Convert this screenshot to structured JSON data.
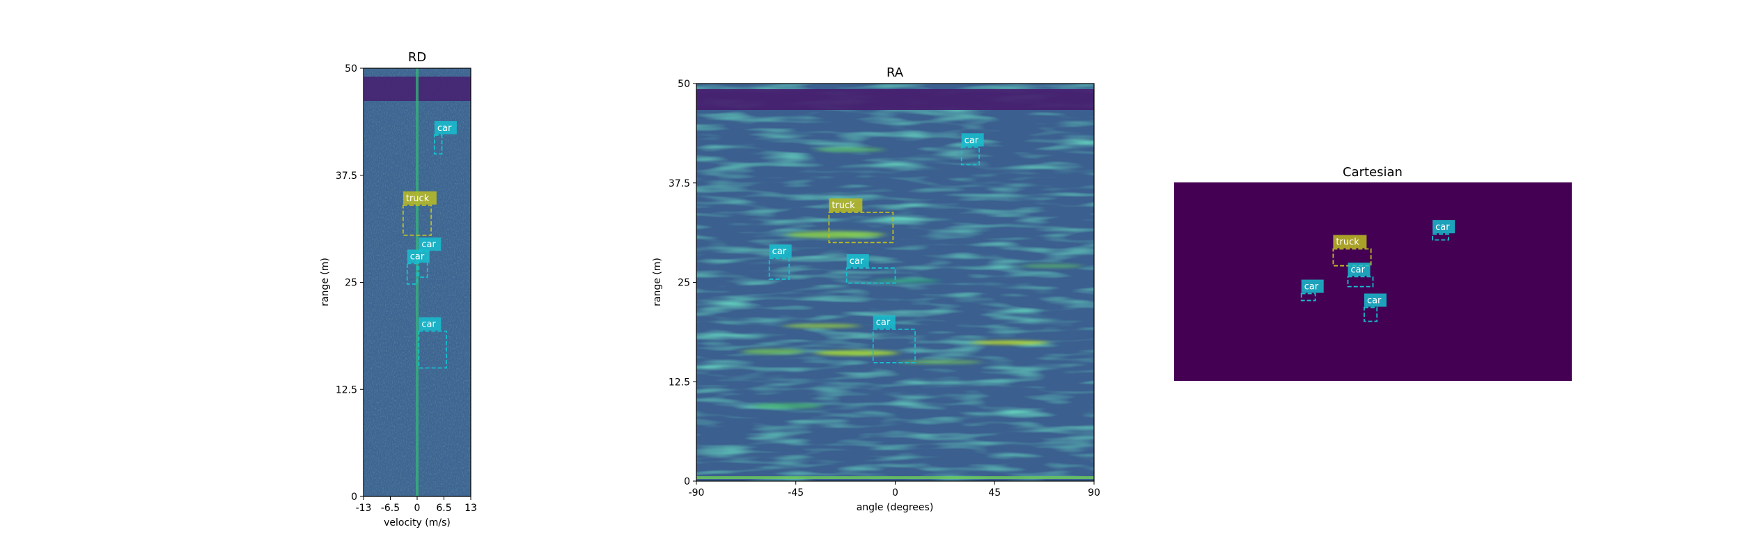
{
  "colors": {
    "background": "#440154",
    "field": "#3a5b93",
    "car": "#17becf",
    "truck": "#bcbd22"
  },
  "chart_data": [
    {
      "id": "rd",
      "type": "heatmap",
      "title": "RD",
      "xlabel": "velocity (m/s)",
      "ylabel": "range (m)",
      "xlim": [
        -13,
        13
      ],
      "ylim": [
        0,
        50
      ],
      "xticks": [
        "-13",
        "-6.5",
        "0",
        "6.5",
        "13"
      ],
      "yticks": [
        "0",
        "12.5",
        "25",
        "37.5",
        "50"
      ],
      "boxes": [
        {
          "label": "car",
          "cls": "car",
          "x0": 4.2,
          "x1": 6.0,
          "y0": 40.0,
          "y1": 42.2
        },
        {
          "label": "truck",
          "cls": "truck",
          "x0": -3.4,
          "x1": 3.4,
          "y0": 30.5,
          "y1": 34.0
        },
        {
          "label": "car",
          "cls": "car",
          "x0": 0.4,
          "x1": 2.5,
          "y0": 25.6,
          "y1": 28.6
        },
        {
          "label": "car",
          "cls": "car",
          "x0": -2.4,
          "x1": 0.0,
          "y0": 24.8,
          "y1": 27.2
        },
        {
          "label": "car",
          "cls": "car",
          "x0": 0.4,
          "x1": 7.1,
          "y0": 15.0,
          "y1": 19.3
        }
      ]
    },
    {
      "id": "ra",
      "type": "heatmap",
      "title": "RA",
      "xlabel": "angle (degrees)",
      "ylabel": "range (m)",
      "xlim": [
        -90,
        90
      ],
      "ylim": [
        0,
        50
      ],
      "xticks": [
        "-90",
        "-45",
        "0",
        "45",
        "90"
      ],
      "yticks": [
        "0",
        "12.5",
        "25",
        "37.5",
        "50"
      ],
      "boxes": [
        {
          "label": "car",
          "cls": "car",
          "x0": 30,
          "x1": 38,
          "y0": 39.8,
          "y1": 42.0
        },
        {
          "label": "truck",
          "cls": "truck",
          "x0": -30,
          "x1": -1,
          "y0": 30.0,
          "y1": 33.8
        },
        {
          "label": "car",
          "cls": "car",
          "x0": -57,
          "x1": -48,
          "y0": 25.4,
          "y1": 28.0
        },
        {
          "label": "car",
          "cls": "car",
          "x0": -22,
          "x1": 0,
          "y0": 24.9,
          "y1": 26.8
        },
        {
          "label": "car",
          "cls": "car",
          "x0": -10,
          "x1": 9,
          "y0": 14.9,
          "y1": 19.1
        }
      ]
    },
    {
      "id": "cart",
      "type": "heatmap",
      "title": "Cartesian",
      "boxes": [
        {
          "label": "car",
          "cls": "car",
          "x0": 0.65,
          "x1": 0.69,
          "y0": 0.26,
          "y1": 0.29
        },
        {
          "label": "truck",
          "cls": "truck",
          "x0": 0.4,
          "x1": 0.495,
          "y0": 0.335,
          "y1": 0.42
        },
        {
          "label": "car",
          "cls": "car",
          "x0": 0.437,
          "x1": 0.5,
          "y0": 0.475,
          "y1": 0.525
        },
        {
          "label": "car",
          "cls": "car",
          "x0": 0.32,
          "x1": 0.355,
          "y0": 0.56,
          "y1": 0.595
        },
        {
          "label": "car",
          "cls": "car",
          "x0": 0.478,
          "x1": 0.51,
          "y0": 0.63,
          "y1": 0.7
        }
      ]
    }
  ]
}
